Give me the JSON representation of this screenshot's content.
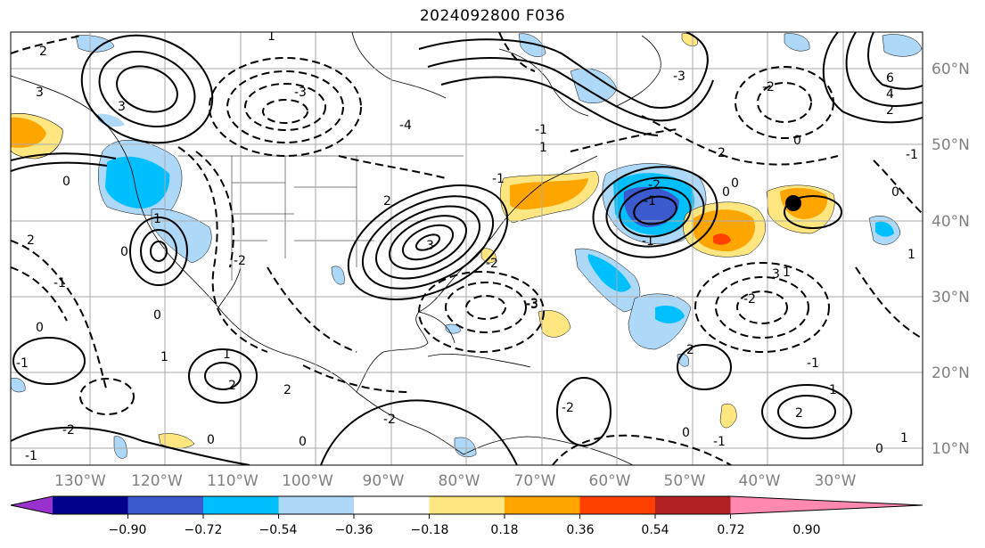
{
  "title": "2024092800 F036",
  "map": {
    "lon_labels": [
      "130°W",
      "120°W",
      "110°W",
      "100°W",
      "90°W",
      "80°W",
      "70°W",
      "60°W",
      "50°W",
      "40°W",
      "30°W"
    ],
    "lat_labels": [
      "60°N",
      "50°N",
      "40°N",
      "30°N",
      "20°N",
      "10°N"
    ],
    "contour_labels": [
      "2",
      "1",
      "3",
      "0",
      "0",
      "1",
      "2",
      "3",
      "-1",
      "-3",
      "-4",
      "-2",
      "0",
      "2",
      "3",
      "-1",
      "-2",
      "-3",
      "1",
      "0",
      "-1",
      "2",
      "0",
      "-2",
      "1",
      "-1",
      "2",
      "-2",
      "0",
      "-3",
      "-1",
      "1",
      "0",
      "-2",
      "6",
      "4",
      "2",
      "0",
      "-1",
      "0",
      "2",
      "0",
      "-1",
      "-1",
      "-2",
      "3",
      "1",
      "-2",
      "-1",
      "2",
      "-2",
      "0",
      "1",
      "-3",
      "2",
      "1",
      "0",
      "-1",
      "1"
    ],
    "marker": "black-dot"
  },
  "colorbar": {
    "ticks": [
      "−0.90",
      "−0.72",
      "−0.54",
      "−0.36",
      "−0.18",
      "0.18",
      "0.36",
      "0.54",
      "0.72",
      "0.90"
    ],
    "colors": [
      "#9932cc",
      "#00008b",
      "#3a5acd",
      "#00bfff",
      "#add8f8",
      "#ffffff",
      "#ffe680",
      "#ffa500",
      "#ff4000",
      "#b22222",
      "#ff88b0"
    ]
  }
}
